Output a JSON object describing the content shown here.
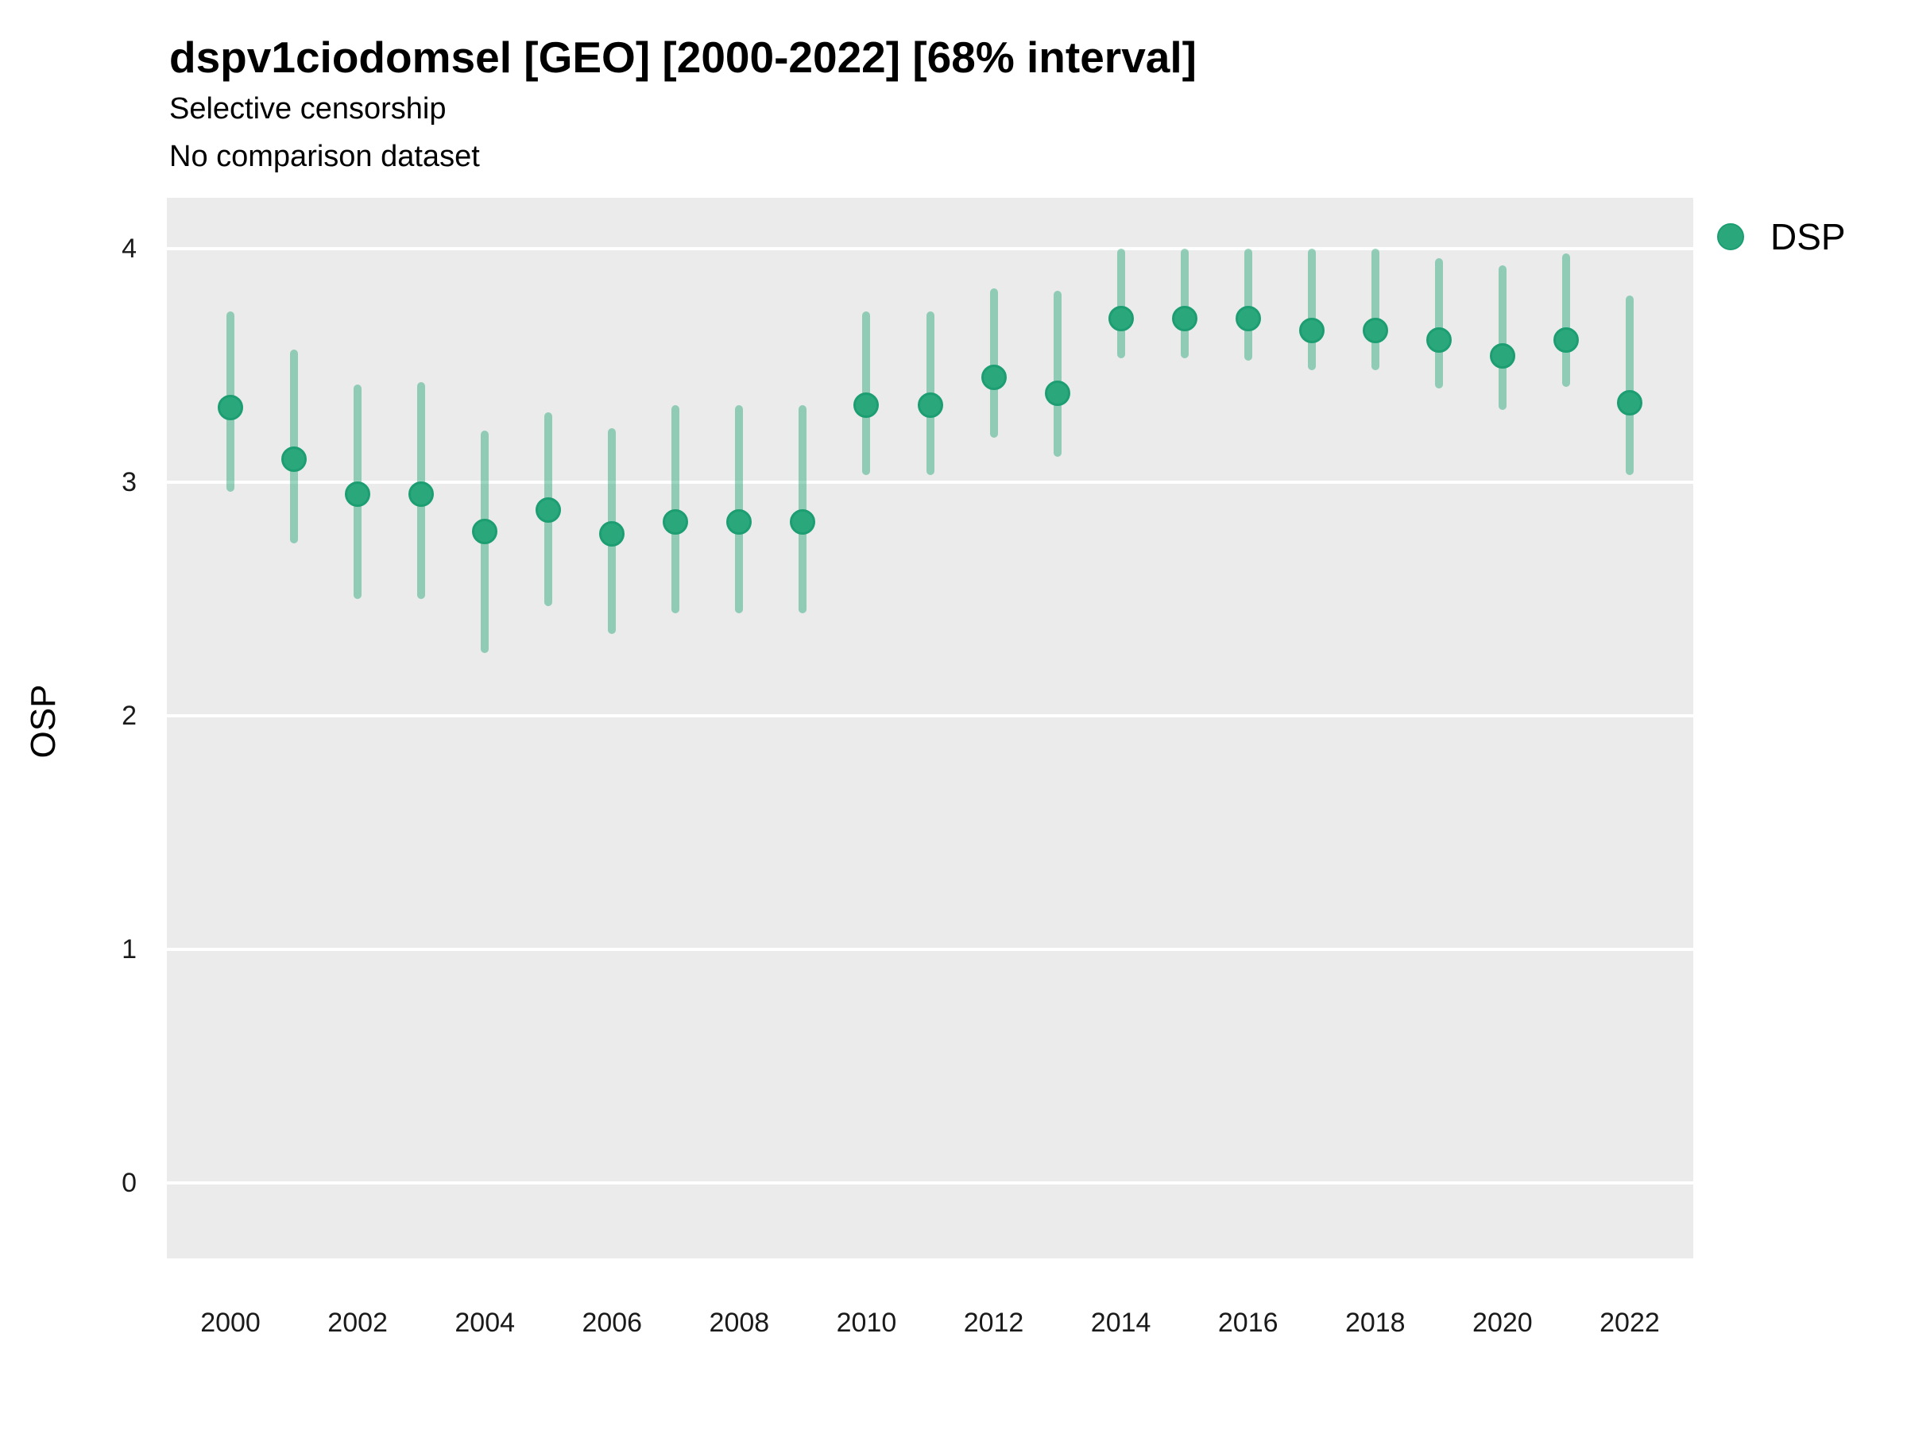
{
  "header": {
    "title": "dspv1ciodomsel [GEO] [2000-2022] [68% interval]",
    "subtitle1": "Selective censorship",
    "subtitle2": "No comparison dataset"
  },
  "legend": {
    "position": "right",
    "items": [
      {
        "label": "DSP",
        "marker": "circle-icon"
      }
    ]
  },
  "colors": {
    "point_fill": "#2aa87c",
    "point_border": "#1d9e72",
    "interval_band": "rgba(42,168,124,0.47)",
    "panel_background": "#ebebeb",
    "gridline": "#ffffff",
    "text": "#000000"
  },
  "chart_data": {
    "type": "pointrange-scatter",
    "title": "dspv1ciodomsel [GEO] [2000-2022] [68% interval]",
    "subtitle": [
      "Selective censorship",
      "No comparison dataset"
    ],
    "xlabel": "",
    "ylabel": "OSP",
    "interval_label": "68% interval",
    "legend_position": "right",
    "grid": "horizontal-major-white-on-gray",
    "x": [
      2000,
      2001,
      2002,
      2003,
      2004,
      2005,
      2006,
      2007,
      2008,
      2009,
      2010,
      2011,
      2012,
      2013,
      2014,
      2015,
      2016,
      2017,
      2018,
      2019,
      2020,
      2021,
      2022
    ],
    "series": [
      {
        "name": "DSP",
        "values": [
          3.32,
          3.1,
          2.95,
          2.95,
          2.79,
          2.88,
          2.78,
          2.83,
          2.83,
          2.83,
          3.33,
          3.33,
          3.45,
          3.38,
          3.7,
          3.7,
          3.7,
          3.65,
          3.65,
          3.61,
          3.54,
          3.61,
          3.34
        ],
        "lower": [
          2.96,
          2.74,
          2.5,
          2.5,
          2.27,
          2.47,
          2.35,
          2.44,
          2.44,
          2.44,
          3.03,
          3.03,
          3.19,
          3.11,
          3.53,
          3.53,
          3.52,
          3.48,
          3.48,
          3.4,
          3.31,
          3.41,
          3.03
        ],
        "upper": [
          3.73,
          3.57,
          3.42,
          3.43,
          3.22,
          3.3,
          3.23,
          3.33,
          3.33,
          3.33,
          3.73,
          3.73,
          3.83,
          3.82,
          4.0,
          4.0,
          4.0,
          4.0,
          4.0,
          3.96,
          3.93,
          3.98,
          3.8
        ]
      }
    ],
    "xticks": [
      2000,
      2002,
      2004,
      2006,
      2008,
      2010,
      2012,
      2014,
      2016,
      2018,
      2020,
      2022
    ],
    "yticks": [
      0,
      1,
      2,
      3,
      4
    ],
    "xlim": [
      1999.0,
      2023.0
    ],
    "ylim": [
      -0.323,
      4.218
    ]
  }
}
